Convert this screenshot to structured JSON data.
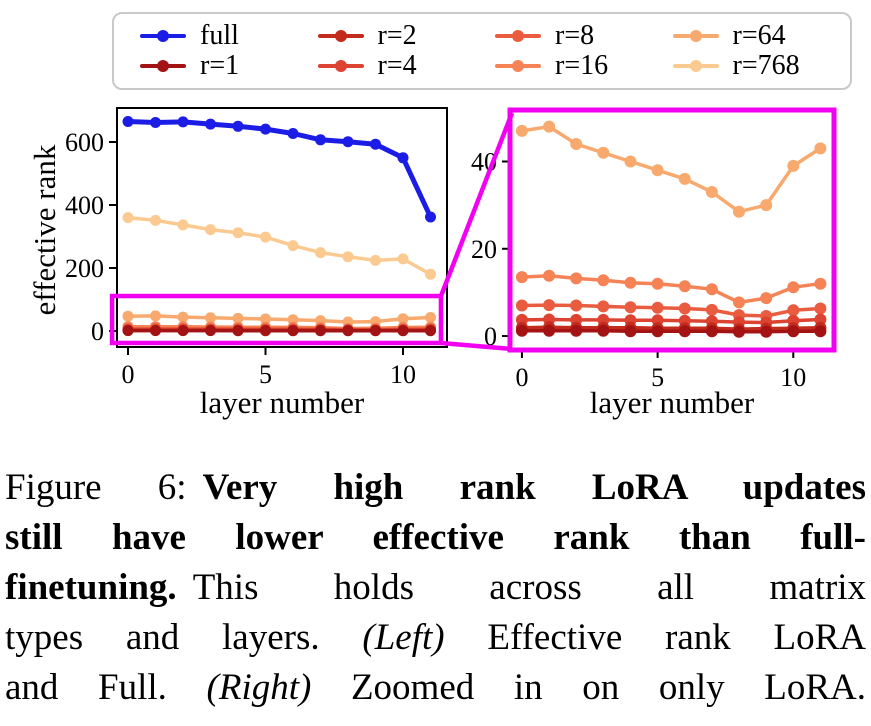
{
  "legend": {
    "items": [
      {
        "label": "full",
        "color": "#1b1de6"
      },
      {
        "label": "r=1",
        "color": "#a31313"
      },
      {
        "label": "r=2",
        "color": "#c32b1d"
      },
      {
        "label": "r=4",
        "color": "#dc4330"
      },
      {
        "label": "r=8",
        "color": "#ea5c3f"
      },
      {
        "label": "r=16",
        "color": "#f58356"
      },
      {
        "label": "r=64",
        "color": "#f8a96e"
      },
      {
        "label": "r=768",
        "color": "#fbca90"
      }
    ]
  },
  "colors": {
    "magenta": "#f200f2",
    "axis": "#000000"
  },
  "chart_data": [
    {
      "id": "left",
      "type": "line",
      "title": "",
      "xlabel": "layer number",
      "ylabel": "effective rank",
      "x": [
        0,
        1,
        2,
        3,
        4,
        5,
        6,
        7,
        8,
        9,
        10,
        11
      ],
      "xticks": [
        0,
        5,
        10
      ],
      "yticks": [
        0,
        200,
        400,
        600
      ],
      "xlim": [
        -0.4,
        11.6
      ],
      "ylim": [
        -50.8,
        708
      ],
      "grid": false,
      "series": [
        {
          "name": "r=768",
          "color": "#fbca90",
          "lw": 3.5,
          "values": [
            360,
            351,
            337,
            322,
            312,
            298,
            271,
            249,
            236,
            224,
            229,
            180
          ]
        },
        {
          "name": "r=64",
          "color": "#f8a96e",
          "lw": 3.5,
          "values": [
            47,
            48,
            44,
            42,
            40,
            38,
            36,
            33,
            28.5,
            30,
            39,
            43
          ]
        },
        {
          "name": "r=16",
          "color": "#f58356",
          "lw": 3.5,
          "values": [
            13.5,
            13.8,
            13.2,
            12.8,
            12.2,
            12,
            11.4,
            10.7,
            7.7,
            8.7,
            11.2,
            12
          ]
        },
        {
          "name": "r=8",
          "color": "#ea5c3f",
          "lw": 3.5,
          "values": [
            7,
            7.1,
            7,
            6.8,
            6.6,
            6.5,
            6.3,
            6,
            4.8,
            4.6,
            5.9,
            6.3
          ]
        },
        {
          "name": "r=4",
          "color": "#dc4330",
          "lw": 3.5,
          "values": [
            3.7,
            3.8,
            3.7,
            3.7,
            3.6,
            3.6,
            3.5,
            3.4,
            3.2,
            3.1,
            3.5,
            3.8
          ]
        },
        {
          "name": "r=2",
          "color": "#c32b1d",
          "lw": 3.5,
          "values": [
            1.9,
            2,
            1.9,
            1.9,
            1.9,
            1.8,
            1.8,
            1.8,
            1.6,
            1.7,
            1.8,
            1.9
          ]
        },
        {
          "name": "r=1",
          "color": "#a31313",
          "lw": 3.5,
          "values": [
            1.2,
            1.2,
            1.2,
            1.2,
            1.1,
            1.1,
            1.1,
            1.1,
            1,
            1,
            1.1,
            1.1
          ]
        },
        {
          "name": "full",
          "color": "#1b1de6",
          "lw": 5,
          "values": [
            665,
            662,
            664,
            657,
            650,
            641,
            627,
            607,
            601,
            593,
            550,
            362
          ]
        }
      ],
      "zoom_box": {
        "x0": -0.58,
        "x1": 11.38,
        "y0": -38,
        "y1": 111
      }
    },
    {
      "id": "right",
      "type": "line",
      "title": "",
      "xlabel": "layer number",
      "ylabel": "",
      "x": [
        0,
        1,
        2,
        3,
        4,
        5,
        6,
        7,
        8,
        9,
        10,
        11
      ],
      "xticks": [
        0,
        5,
        10
      ],
      "yticks": [
        0,
        20,
        40
      ],
      "xlim": [
        -0.44,
        11.5
      ],
      "ylim": [
        -3.2,
        51.8
      ],
      "grid": false,
      "series": [
        {
          "name": "r=64",
          "color": "#f8a96e",
          "lw": 3.5,
          "values": [
            47,
            48,
            44,
            42,
            40,
            38,
            36,
            33,
            28.5,
            30,
            39,
            43
          ]
        },
        {
          "name": "r=16",
          "color": "#f58356",
          "lw": 3.5,
          "values": [
            13.5,
            13.8,
            13.2,
            12.8,
            12.2,
            12,
            11.4,
            10.7,
            7.7,
            8.7,
            11.2,
            12
          ]
        },
        {
          "name": "r=8",
          "color": "#ea5c3f",
          "lw": 3.5,
          "values": [
            7,
            7.1,
            7,
            6.8,
            6.6,
            6.5,
            6.3,
            6,
            4.8,
            4.6,
            5.9,
            6.3
          ]
        },
        {
          "name": "r=4",
          "color": "#dc4330",
          "lw": 3.5,
          "values": [
            3.7,
            3.8,
            3.7,
            3.7,
            3.6,
            3.6,
            3.5,
            3.4,
            3.2,
            3.1,
            3.5,
            3.8
          ]
        },
        {
          "name": "r=2",
          "color": "#c32b1d",
          "lw": 3.5,
          "values": [
            1.9,
            2,
            1.9,
            1.9,
            1.9,
            1.8,
            1.8,
            1.8,
            1.6,
            1.7,
            1.8,
            1.9
          ]
        },
        {
          "name": "r=1",
          "color": "#a31313",
          "lw": 3.5,
          "values": [
            1.2,
            1.2,
            1.2,
            1.2,
            1.1,
            1.1,
            1.1,
            1.1,
            1,
            1,
            1.1,
            1.1
          ]
        }
      ]
    }
  ],
  "caption": {
    "lines": [
      [
        {
          "t": "Figure 6:",
          "s": "n",
          "gap": true
        },
        {
          "t": "Very high rank LoRA updates",
          "s": "b"
        }
      ],
      [
        {
          "t": "still have lower effective rank than full-",
          "s": "b"
        }
      ],
      [
        {
          "t": "finetuning.",
          "s": "b",
          "gap": true
        },
        {
          "t": "This holds across all matrix",
          "s": "n"
        }
      ],
      [
        {
          "t": "types and layers. ",
          "s": "n"
        },
        {
          "t": "(Left)",
          "s": "i"
        },
        {
          "t": " Effective rank LoRA",
          "s": "n"
        }
      ],
      [
        {
          "t": "and Full. ",
          "s": "n"
        },
        {
          "t": "(Right)",
          "s": "i"
        },
        {
          "t": " Zoomed in on only LoRA.",
          "s": "n"
        }
      ]
    ]
  }
}
